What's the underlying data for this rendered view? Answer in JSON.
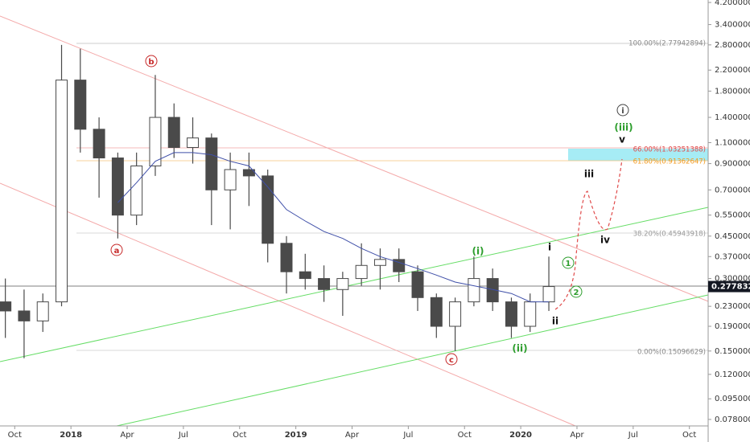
{
  "chart_data": {
    "type": "candlestick",
    "x": [
      "2017-09",
      "2017-10",
      "2017-11",
      "2017-12",
      "2018-01",
      "2018-02",
      "2018-03",
      "2018-04",
      "2018-05",
      "2018-06",
      "2018-07",
      "2018-08",
      "2018-09",
      "2018-10",
      "2018-11",
      "2018-12",
      "2019-01",
      "2019-02",
      "2019-03",
      "2019-04",
      "2019-05",
      "2019-06",
      "2019-07",
      "2019-08",
      "2019-09",
      "2019-10",
      "2019-11",
      "2019-12",
      "2020-01",
      "2020-02"
    ],
    "open": [
      0.24,
      0.22,
      0.2,
      0.24,
      2.0,
      1.25,
      0.95,
      0.55,
      0.88,
      1.4,
      1.05,
      1.15,
      0.7,
      0.85,
      0.8,
      0.42,
      0.32,
      0.3,
      0.27,
      0.3,
      0.34,
      0.36,
      0.32,
      0.25,
      0.19,
      0.24,
      0.3,
      0.24,
      0.19,
      0.24
    ],
    "high": [
      0.3,
      0.27,
      0.26,
      2.8,
      2.7,
      1.4,
      1.0,
      1.0,
      2.1,
      1.6,
      1.4,
      1.2,
      1.0,
      1.0,
      0.85,
      0.45,
      0.38,
      0.34,
      0.32,
      0.42,
      0.4,
      0.4,
      0.34,
      0.26,
      0.25,
      0.37,
      0.33,
      0.25,
      0.26,
      0.37
    ],
    "low": [
      0.17,
      0.14,
      0.18,
      0.23,
      1.0,
      0.65,
      0.44,
      0.5,
      0.8,
      0.95,
      0.9,
      0.5,
      0.48,
      0.6,
      0.35,
      0.26,
      0.27,
      0.24,
      0.21,
      0.28,
      0.27,
      0.29,
      0.22,
      0.17,
      0.15,
      0.23,
      0.22,
      0.17,
      0.18,
      0.22
    ],
    "close": [
      0.22,
      0.2,
      0.24,
      2.0,
      1.25,
      0.95,
      0.55,
      0.88,
      1.4,
      1.05,
      1.15,
      0.7,
      0.85,
      0.8,
      0.42,
      0.32,
      0.3,
      0.27,
      0.3,
      0.34,
      0.36,
      0.32,
      0.25,
      0.19,
      0.24,
      0.3,
      0.24,
      0.19,
      0.24,
      0.27783283
    ],
    "color": "#4a4a4a",
    "ma_values": [
      null,
      null,
      null,
      null,
      null,
      null,
      0.62,
      0.75,
      0.92,
      1.0,
      1.0,
      0.98,
      0.92,
      0.88,
      0.72,
      0.58,
      0.52,
      0.47,
      0.44,
      0.4,
      0.37,
      0.35,
      0.33,
      0.31,
      0.29,
      0.28,
      0.27,
      0.26,
      0.24,
      0.24
    ],
    "ma_color": "#3f4fa8",
    "log_scale": true,
    "xlim": [
      "2017-09",
      "2020-11"
    ],
    "xticks": [
      {
        "value": "2017-10",
        "label": "Oct"
      },
      {
        "value": "2018-01",
        "label": "2018"
      },
      {
        "value": "2018-04",
        "label": "Apr"
      },
      {
        "value": "2018-07",
        "label": "Jul"
      },
      {
        "value": "2018-10",
        "label": "Oct"
      },
      {
        "value": "2019-01",
        "label": "2019"
      },
      {
        "value": "2019-04",
        "label": "Apr"
      },
      {
        "value": "2019-07",
        "label": "Jul"
      },
      {
        "value": "2019-10",
        "label": "Oct"
      },
      {
        "value": "2020-01",
        "label": "2020"
      },
      {
        "value": "2020-04",
        "label": "Apr"
      },
      {
        "value": "2020-07",
        "label": "Jul"
      },
      {
        "value": "2020-10",
        "label": "Oct"
      }
    ],
    "ylim": [
      0.0733,
      4.3
    ],
    "yticks": [
      {
        "value": 4.2,
        "label": "4.20000000"
      },
      {
        "value": 3.4,
        "label": "3.40000000"
      },
      {
        "value": 2.8,
        "label": "2.80000000"
      },
      {
        "value": 2.2,
        "label": "2.20000000"
      },
      {
        "value": 1.8,
        "label": "1.80000000"
      },
      {
        "value": 1.4,
        "label": "1.40000000"
      },
      {
        "value": 1.1,
        "label": "1.10000000"
      },
      {
        "value": 0.9,
        "label": "0.90000000"
      },
      {
        "value": 0.7,
        "label": "0.70000000"
      },
      {
        "value": 0.55,
        "label": "0.55000000"
      },
      {
        "value": 0.45,
        "label": "0.45000000"
      },
      {
        "value": 0.37,
        "label": "0.37000000"
      },
      {
        "value": 0.3,
        "label": "0.30000000"
      },
      {
        "value": 0.23,
        "label": "0.23000000"
      },
      {
        "value": 0.19,
        "label": "0.19000000"
      },
      {
        "value": 0.15,
        "label": "0.15000000"
      },
      {
        "value": 0.12,
        "label": "0.12000000"
      },
      {
        "value": 0.095,
        "label": "0.09500000"
      },
      {
        "value": 0.078,
        "label": "0.07800000"
      }
    ],
    "fib_labels": [
      "100.00%(2.77942894)",
      "66.00%(1.03251388)",
      "61.80%(0.91362647)",
      "38.20%(0.45943918)",
      "0.00%(0.15096629)"
    ],
    "waves": [
      "a",
      "b",
      "c",
      "(i)",
      "(ii)",
      "(iii)",
      "i",
      "ii",
      "iii",
      "iv",
      "v",
      "i",
      "1",
      "2"
    ]
  }
}
